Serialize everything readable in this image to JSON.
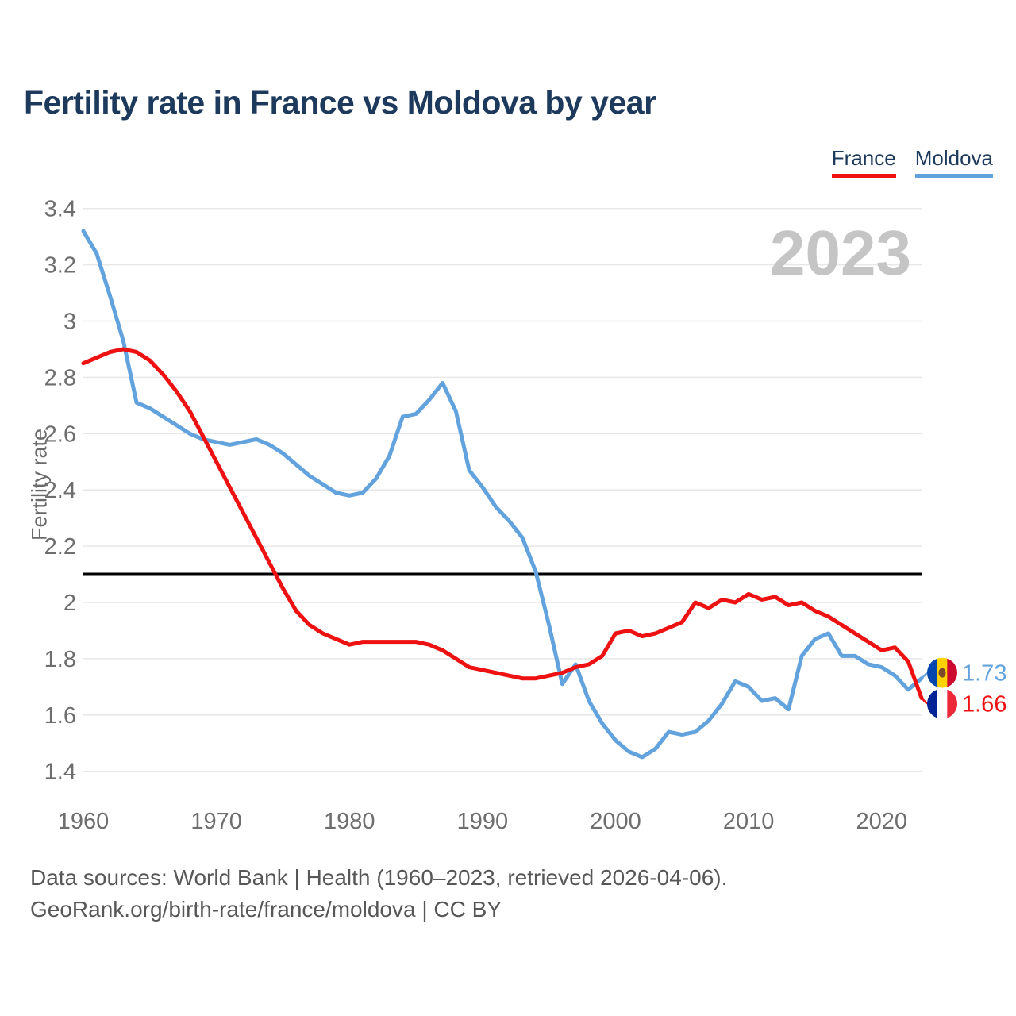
{
  "title": "Fertility rate in France vs Moldova by year",
  "watermark": "2023",
  "legend": {
    "items": [
      {
        "label": "France",
        "color": "#ee1111"
      },
      {
        "label": "Moldova",
        "color": "#63a3dd"
      }
    ]
  },
  "ylabel": "Fertility rate",
  "footer": {
    "line1": "Data sources: World Bank | Health (1960–2023, retrieved 2026-04-06).",
    "line2": "GeoRank.org/birth-rate/france/moldova | CC BY"
  },
  "colors": {
    "france": "#ee1111",
    "moldova": "#63a3dd",
    "title_text": "#1d3a5c",
    "axis_text": "#6e6e6e",
    "grid": "#e7e7e7",
    "watermark": "#c5c5c5",
    "reference_line": "#000000"
  },
  "chart_data": {
    "type": "line",
    "title": "Fertility rate in France vs Moldova by year",
    "xlabel": "",
    "ylabel": "Fertility rate",
    "ylim": [
      1.4,
      3.4
    ],
    "xlim": [
      1960,
      2023
    ],
    "yticks": [
      3.4,
      3.2,
      3,
      2.8,
      2.6,
      2.4,
      2.2,
      2,
      1.8,
      1.6,
      1.4
    ],
    "xticks": [
      1960,
      1970,
      1980,
      1990,
      2000,
      2010,
      2020
    ],
    "grid": "horizontal",
    "legend_position": "top-right",
    "reference_line_y": 2.1,
    "watermark": "2023",
    "years": [
      1960,
      1961,
      1962,
      1963,
      1964,
      1965,
      1966,
      1967,
      1968,
      1969,
      1970,
      1971,
      1972,
      1973,
      1974,
      1975,
      1976,
      1977,
      1978,
      1979,
      1980,
      1981,
      1982,
      1983,
      1984,
      1985,
      1986,
      1987,
      1988,
      1989,
      1990,
      1991,
      1992,
      1993,
      1994,
      1995,
      1996,
      1997,
      1998,
      1999,
      2000,
      2001,
      2002,
      2003,
      2004,
      2005,
      2006,
      2007,
      2008,
      2009,
      2010,
      2011,
      2012,
      2013,
      2014,
      2015,
      2016,
      2017,
      2018,
      2019,
      2020,
      2021,
      2022,
      2023
    ],
    "series": [
      {
        "name": "Moldova",
        "color": "#63a3dd",
        "end_label": "1.73",
        "flag": "moldova",
        "values": [
          3.32,
          3.24,
          3.09,
          2.93,
          2.71,
          2.69,
          2.66,
          2.63,
          2.6,
          2.58,
          2.57,
          2.56,
          2.57,
          2.58,
          2.56,
          2.53,
          2.49,
          2.45,
          2.42,
          2.39,
          2.38,
          2.39,
          2.44,
          2.52,
          2.66,
          2.67,
          2.72,
          2.78,
          2.68,
          2.47,
          2.41,
          2.34,
          2.29,
          2.23,
          2.11,
          1.92,
          1.71,
          1.78,
          1.65,
          1.57,
          1.51,
          1.47,
          1.45,
          1.48,
          1.54,
          1.53,
          1.54,
          1.58,
          1.64,
          1.72,
          1.7,
          1.65,
          1.66,
          1.62,
          1.81,
          1.87,
          1.89,
          1.81,
          1.81,
          1.78,
          1.77,
          1.74,
          1.69,
          1.73
        ]
      },
      {
        "name": "France",
        "color": "#ee1111",
        "end_label": "1.66",
        "flag": "france",
        "values": [
          2.85,
          2.87,
          2.89,
          2.9,
          2.89,
          2.86,
          2.81,
          2.75,
          2.68,
          2.59,
          2.5,
          2.41,
          2.32,
          2.23,
          2.14,
          2.05,
          1.97,
          1.92,
          1.89,
          1.87,
          1.85,
          1.86,
          1.86,
          1.86,
          1.86,
          1.86,
          1.85,
          1.83,
          1.8,
          1.77,
          1.76,
          1.75,
          1.74,
          1.73,
          1.73,
          1.74,
          1.75,
          1.77,
          1.78,
          1.81,
          1.89,
          1.9,
          1.88,
          1.89,
          1.91,
          1.93,
          2.0,
          1.98,
          2.01,
          2.0,
          2.03,
          2.01,
          2.02,
          1.99,
          2.0,
          1.97,
          1.95,
          1.92,
          1.89,
          1.86,
          1.83,
          1.84,
          1.79,
          1.66
        ]
      }
    ],
    "flag_colors": {
      "moldova": [
        "#0046ae",
        "#ffd200",
        "#cc092f"
      ],
      "france": [
        "#002395",
        "#ffffff",
        "#ed2939"
      ]
    }
  }
}
